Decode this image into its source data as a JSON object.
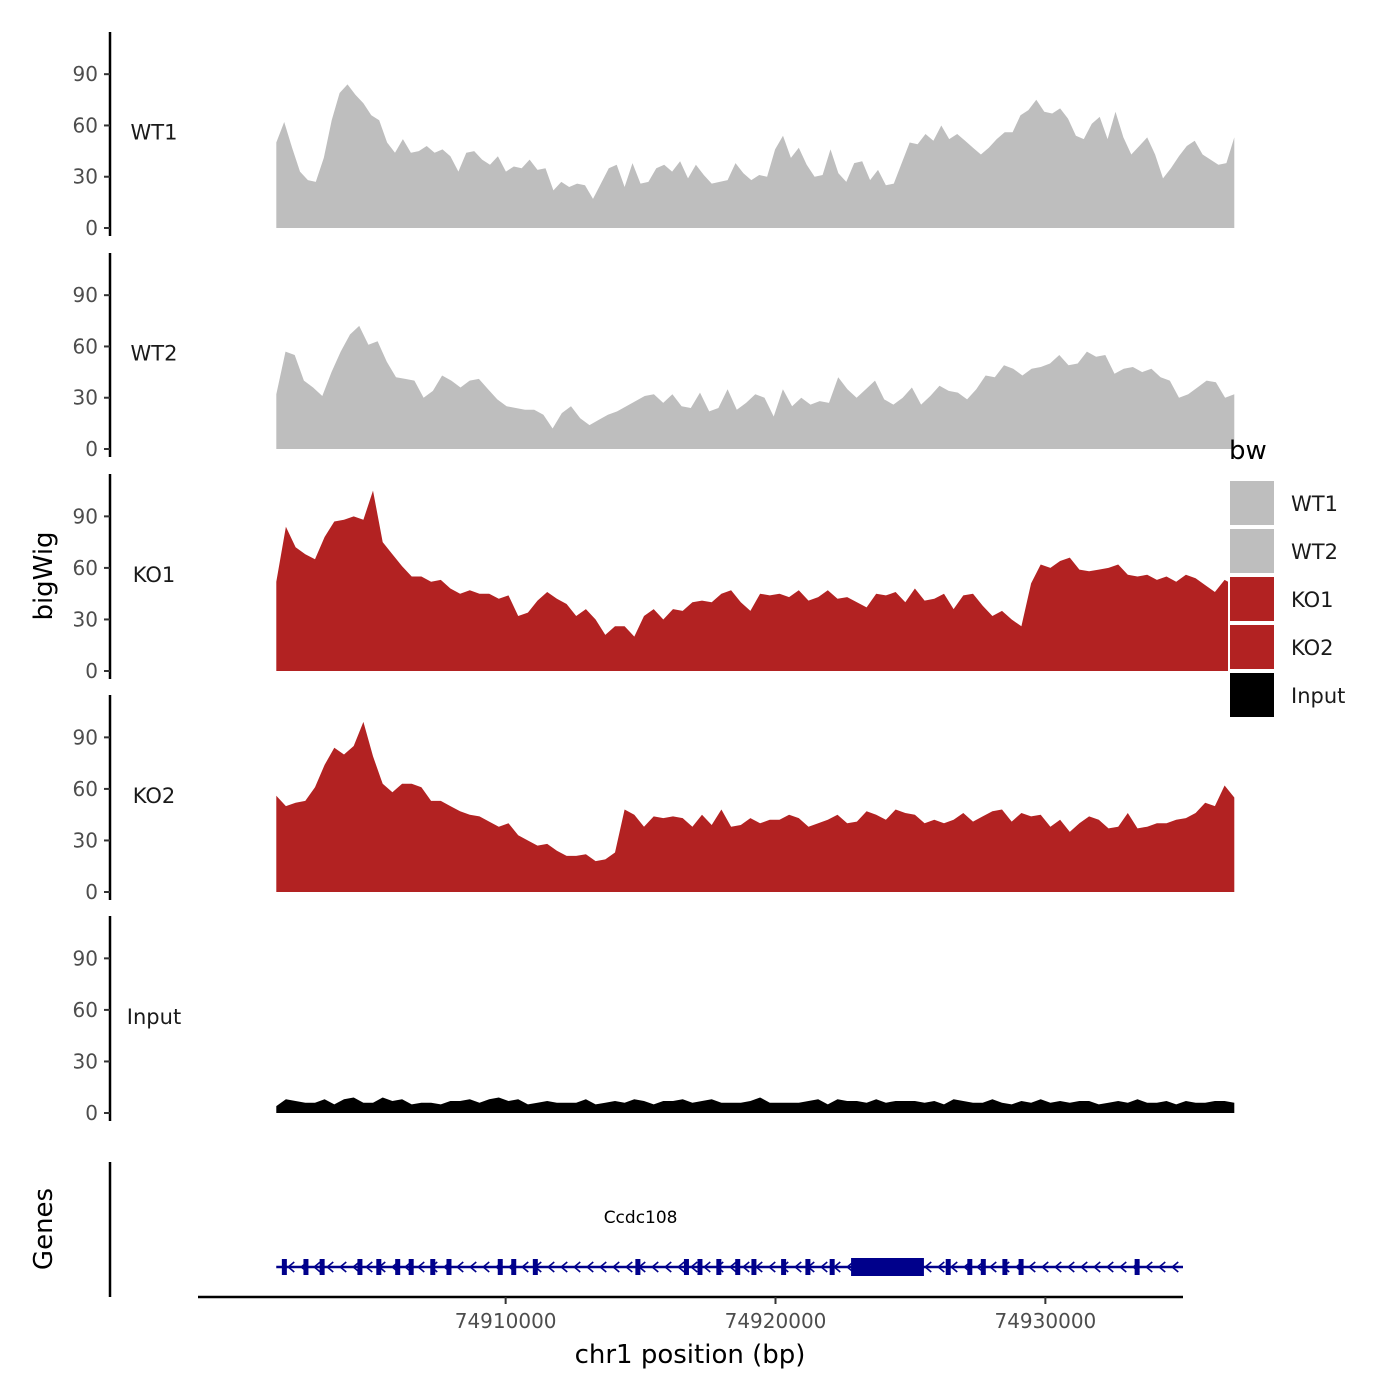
{
  "chart_data": {
    "type": "area",
    "title": "",
    "ylabel": "bigWig",
    "xlabel": "chr1 position (bp)",
    "x_range": [
      74898600,
      74935100
    ],
    "x_ticks": [
      74910000,
      74920000,
      74930000
    ],
    "x_tick_labels": [
      "74910000",
      "74920000",
      "74930000"
    ],
    "ylim": [
      0,
      110
    ],
    "y_ticks": [
      0,
      30,
      60,
      90
    ],
    "y_tick_labels": [
      "0",
      "30",
      "60",
      "90"
    ],
    "region_start": 74901500,
    "region_end": 74937000,
    "legend": {
      "title": "bw",
      "position": "right",
      "entries": [
        {
          "label": "WT1",
          "color": "#bebebe"
        },
        {
          "label": "WT2",
          "color": "#bebebe"
        },
        {
          "label": "KO1",
          "color": "#b22222"
        },
        {
          "label": "KO2",
          "color": "#b22222"
        },
        {
          "label": "Input",
          "color": "#000000"
        }
      ]
    },
    "series": [
      {
        "name": "WT1",
        "color": "#bebebe",
        "values": [
          50,
          62,
          47,
          33,
          28,
          27,
          41,
          63,
          79,
          84,
          78,
          73,
          66,
          63,
          50,
          44,
          52,
          44,
          45,
          48,
          44,
          46,
          42,
          33,
          44,
          45,
          40,
          37,
          42,
          33,
          36,
          35,
          40,
          34,
          35,
          22,
          27,
          24,
          26,
          25,
          17,
          26,
          35,
          37,
          24,
          38,
          26,
          27,
          35,
          37,
          33,
          39,
          29,
          37,
          31,
          26,
          27,
          28,
          38,
          32,
          28,
          31,
          30,
          46,
          54,
          41,
          47,
          37,
          30,
          31,
          46,
          32,
          27,
          38,
          39,
          28,
          34,
          25,
          26,
          38,
          50,
          49,
          55,
          51,
          60,
          52,
          55,
          51,
          47,
          43,
          47,
          52,
          56,
          56,
          66,
          69,
          75,
          68,
          67,
          70,
          64,
          54,
          52,
          61,
          65,
          52,
          68,
          53,
          43,
          48,
          53,
          43,
          29,
          35,
          42,
          48,
          51,
          43,
          40,
          37,
          38,
          53
        ]
      },
      {
        "name": "WT2",
        "color": "#bebebe",
        "values": [
          32,
          57,
          55,
          40,
          36,
          31,
          45,
          57,
          67,
          72,
          61,
          63,
          51,
          42,
          41,
          40,
          30,
          34,
          43,
          40,
          36,
          40,
          41,
          35,
          29,
          25,
          24,
          23,
          23,
          20,
          12,
          21,
          25,
          18,
          14,
          17,
          20,
          22,
          25,
          28,
          31,
          32,
          27,
          32,
          25,
          24,
          33,
          22,
          24,
          35,
          23,
          27,
          32,
          30,
          19,
          35,
          25,
          30,
          26,
          28,
          27,
          42,
          35,
          30,
          35,
          40,
          29,
          26,
          30,
          36,
          26,
          31,
          37,
          34,
          33,
          29,
          35,
          43,
          42,
          49,
          47,
          43,
          47,
          48,
          50,
          55,
          49,
          50,
          57,
          54,
          55,
          44,
          47,
          48,
          45,
          47,
          42,
          40,
          30,
          32,
          36,
          40,
          39,
          30,
          32
        ]
      },
      {
        "name": "KO1",
        "color": "#b22222",
        "values": [
          52,
          84,
          72,
          68,
          65,
          78,
          87,
          88,
          90,
          88,
          105,
          75,
          68,
          61,
          55,
          55,
          52,
          53,
          48,
          45,
          47,
          45,
          45,
          42,
          44,
          32,
          34,
          41,
          46,
          42,
          39,
          32,
          36,
          30,
          21,
          26,
          26,
          20,
          32,
          36,
          30,
          36,
          35,
          40,
          41,
          40,
          45,
          47,
          40,
          35,
          45,
          44,
          45,
          43,
          47,
          41,
          43,
          47,
          42,
          43,
          40,
          37,
          45,
          44,
          46,
          40,
          48,
          41,
          42,
          45,
          36,
          44,
          45,
          38,
          32,
          35,
          30,
          26,
          51,
          62,
          60,
          64,
          66,
          59,
          58,
          59,
          60,
          62,
          56,
          55,
          56,
          53,
          55,
          52,
          56,
          54,
          50,
          46,
          53,
          50
        ]
      },
      {
        "name": "KO2",
        "color": "#b22222",
        "values": [
          56,
          50,
          52,
          53,
          61,
          74,
          84,
          80,
          85,
          99,
          79,
          63,
          58,
          63,
          63,
          61,
          53,
          53,
          50,
          47,
          45,
          44,
          41,
          38,
          40,
          33,
          30,
          27,
          28,
          24,
          21,
          21,
          22,
          18,
          19,
          23,
          48,
          45,
          38,
          44,
          43,
          44,
          43,
          38,
          45,
          39,
          48,
          38,
          39,
          43,
          40,
          42,
          42,
          45,
          43,
          38,
          40,
          42,
          45,
          40,
          41,
          47,
          45,
          42,
          48,
          46,
          45,
          40,
          42,
          40,
          42,
          46,
          41,
          44,
          47,
          48,
          41,
          46,
          44,
          45,
          38,
          42,
          35,
          40,
          44,
          42,
          37,
          38,
          46,
          37,
          38,
          40,
          40,
          42,
          43,
          46,
          52,
          50,
          62,
          55
        ]
      },
      {
        "name": "Input",
        "color": "#000000",
        "values": [
          4,
          8,
          7,
          6,
          6,
          8,
          5,
          8,
          9,
          6,
          6,
          9,
          7,
          8,
          5,
          6,
          6,
          5,
          7,
          7,
          8,
          6,
          8,
          9,
          7,
          8,
          5,
          6,
          7,
          6,
          6,
          6,
          8,
          5,
          6,
          7,
          6,
          8,
          7,
          5,
          7,
          7,
          8,
          6,
          7,
          8,
          6,
          6,
          6,
          7,
          9,
          6,
          6,
          6,
          6,
          7,
          8,
          5,
          8,
          7,
          7,
          6,
          8,
          6,
          7,
          7,
          7,
          6,
          7,
          5,
          8,
          7,
          6,
          6,
          8,
          6,
          5,
          7,
          6,
          8,
          6,
          7,
          6,
          7,
          7,
          5,
          6,
          7,
          6,
          8,
          6,
          6,
          7,
          5,
          7,
          6,
          6,
          7,
          7,
          6
        ]
      }
    ],
    "genes_track": {
      "label": "Genes",
      "gene_name": "Ccdc108",
      "start": 74901500,
      "end": 74935100,
      "strand": "-",
      "cds_start": 74922800,
      "cds_end": 74925500,
      "color": "#00008b",
      "exons": [
        74901800,
        74902600,
        74903200,
        74904600,
        74905300,
        74906000,
        74906500,
        74907300,
        74907900,
        74909800,
        74910300,
        74911100,
        74914900,
        74916700,
        74917200,
        74917900,
        74918600,
        74919200,
        74920300,
        74921200,
        74922100,
        74926400,
        74927200,
        74927700,
        74928500,
        74929100,
        74933400
      ]
    }
  }
}
